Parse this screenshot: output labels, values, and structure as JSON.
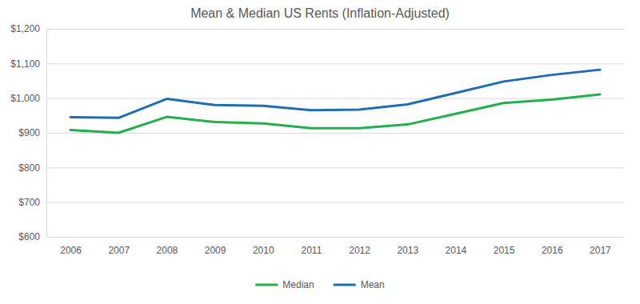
{
  "chart_data": {
    "type": "line",
    "title": "Mean & Median US Rents (Inflation-Adjusted)",
    "categories": [
      "2006",
      "2007",
      "2008",
      "2009",
      "2010",
      "2011",
      "2012",
      "2013",
      "2014",
      "2015",
      "2016",
      "2017"
    ],
    "series": [
      {
        "name": "Median",
        "color": "#22b04b",
        "values": [
          908,
          900,
          946,
          931,
          927,
          913,
          913,
          924,
          955,
          986,
          996,
          1011
        ]
      },
      {
        "name": "Mean",
        "color": "#1f6db3",
        "values": [
          945,
          943,
          998,
          980,
          978,
          965,
          967,
          982,
          1015,
          1048,
          1067,
          1082
        ]
      }
    ],
    "ylim": [
      600,
      1200
    ],
    "yticks": [
      {
        "value": 600,
        "label": "$600"
      },
      {
        "value": 700,
        "label": "$700"
      },
      {
        "value": 800,
        "label": "$800"
      },
      {
        "value": 900,
        "label": "$900"
      },
      {
        "value": 1000,
        "label": "$1,000"
      },
      {
        "value": 1100,
        "label": "$1,100"
      },
      {
        "value": 1200,
        "label": "$1,200"
      }
    ],
    "grid": true,
    "legend": "bottom"
  }
}
